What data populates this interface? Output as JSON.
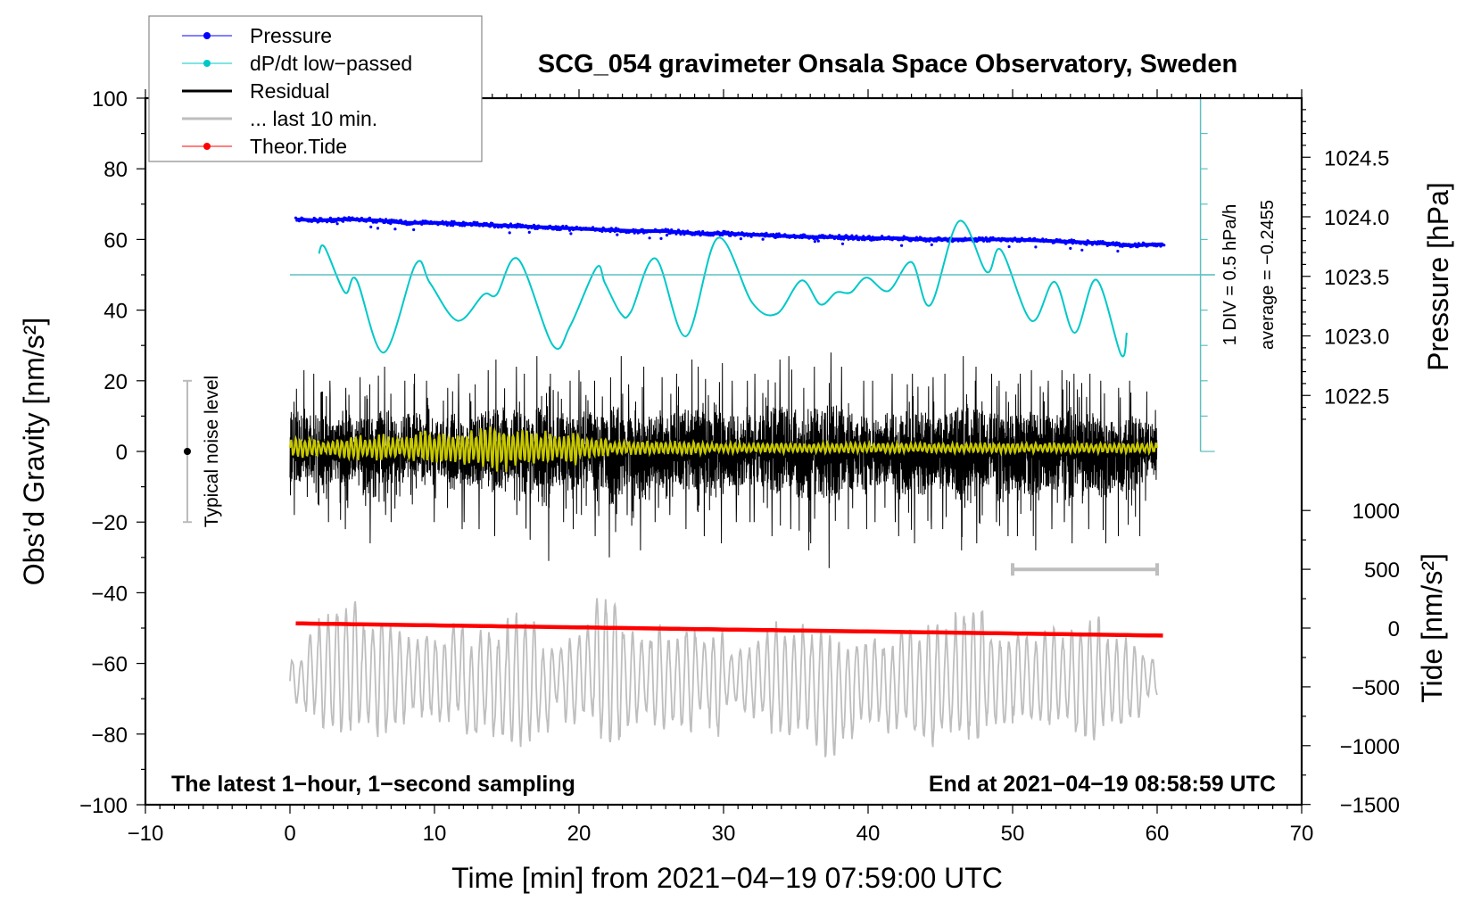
{
  "chart_data": {
    "type": "line",
    "title": "SCG_054 gravimeter Onsala Space Observatory, Sweden",
    "xlabel": "Time [min] from 2021−04−19 07:59:00 UTC",
    "ylabel": "Obs’d Gravity [nm/s²]",
    "ylabel_right_top": "Pressure [hPa]",
    "ylabel_right_bottom": "Tide [nm/s²]",
    "xlim": [
      -10,
      70
    ],
    "ylim": [
      -100,
      100
    ],
    "x_ticks": [
      "−10",
      "0",
      "10",
      "20",
      "30",
      "40",
      "50",
      "60",
      "70"
    ],
    "x_tick_values": [
      -10,
      0,
      10,
      20,
      30,
      40,
      50,
      60,
      70
    ],
    "y_ticks": [
      "100",
      "80",
      "60",
      "40",
      "20",
      "0",
      "−20",
      "−40",
      "−60",
      "−80",
      "−100"
    ],
    "y_tick_values": [
      100,
      80,
      60,
      40,
      20,
      0,
      -20,
      -40,
      -60,
      -80,
      -100
    ],
    "pressure_ticks": [
      "1024.5",
      "1024.0",
      "1023.5",
      "1023.0",
      "1022.5"
    ],
    "pressure_tick_values": [
      1024.5,
      1024.0,
      1023.5,
      1023.0,
      1022.5
    ],
    "tide_ticks": [
      "1000",
      "500",
      "0",
      "−500",
      "−1000",
      "−1500"
    ],
    "tide_tick_values": [
      1000,
      500,
      0,
      -500,
      -1000,
      -1500
    ],
    "legend": {
      "placement": "top-left",
      "entries": [
        {
          "label": "Pressure",
          "color": "#0000ff",
          "marker": "dot"
        },
        {
          "label": "dP/dt low−passed",
          "color": "#00c8c8",
          "marker": "dot"
        },
        {
          "label": "Residual",
          "color": "#000000",
          "marker": "line"
        },
        {
          "label": "... last 10 min.",
          "color": "#bebebe",
          "marker": "line"
        },
        {
          "label": "Theor.Tide",
          "color": "#ff0000",
          "marker": "dot"
        }
      ]
    },
    "annotations": {
      "div_label": "1 DIV = 0.5 hPa/h",
      "average_label": "average = −0.2455",
      "noise_label": "Typical noise level",
      "bottom_left": "The latest 1−hour, 1−second sampling",
      "bottom_right": "End at 2021−04−19 08:58:59 UTC"
    },
    "noise_level_range": [
      -20,
      20
    ],
    "last10_scale_bar_min": [
      50,
      60
    ],
    "dpdt_div_hPa_per_h": 0.5,
    "dpdt_zero_gravity_level": 50,
    "pressure_hPa": {
      "t": [
        0,
        2,
        4,
        6,
        8,
        10,
        12,
        14,
        16,
        18,
        20,
        22,
        24,
        26,
        28,
        30,
        32,
        34,
        36,
        38,
        40,
        42,
        44,
        46,
        48,
        50,
        52,
        54,
        56,
        58,
        60.5
      ],
      "values": [
        1023.98,
        1023.97,
        1023.98,
        1023.97,
        1023.95,
        1023.95,
        1023.94,
        1023.93,
        1023.92,
        1023.91,
        1023.9,
        1023.89,
        1023.88,
        1023.88,
        1023.86,
        1023.86,
        1023.85,
        1023.84,
        1023.83,
        1023.83,
        1023.82,
        1023.82,
        1023.81,
        1023.81,
        1023.81,
        1023.81,
        1023.8,
        1023.79,
        1023.78,
        1023.76,
        1023.77
      ]
    },
    "dpdt_hPa_per_h": {
      "t": [
        2.0,
        2.4,
        3.8,
        4.6,
        6.5,
        8.7,
        9.7,
        11.6,
        13.4,
        14.3,
        15.8,
        18.2,
        19.4,
        21.2,
        21.8,
        22.9,
        23.6,
        25.3,
        27.4,
        29.6,
        32.0,
        33.7,
        35.4,
        36.7,
        37.8,
        38.8,
        39.9,
        41.4,
        43.0,
        44.3,
        46.3,
        48.2,
        49.2,
        51.3,
        52.9,
        54.3,
        55.8,
        57.5,
        57.9
      ],
      "values": [
        0.3,
        0.39,
        -0.25,
        -0.07,
        -1.1,
        0.15,
        -0.12,
        -0.65,
        -0.28,
        -0.28,
        0.22,
        -1.0,
        -0.72,
        0.1,
        -0.12,
        -0.55,
        -0.52,
        0.23,
        -0.87,
        0.52,
        -0.4,
        -0.55,
        -0.08,
        -0.42,
        -0.25,
        -0.25,
        -0.04,
        -0.23,
        0.18,
        -0.43,
        0.76,
        0.04,
        0.35,
        -0.65,
        -0.1,
        -0.82,
        -0.07,
        -1.13,
        -0.82
      ]
    },
    "residual_envelope_per_minute": [
      [
        -18,
        23
      ],
      [
        -15,
        22
      ],
      [
        -20,
        20
      ],
      [
        -22,
        18
      ],
      [
        -16,
        21
      ],
      [
        -26,
        19
      ],
      [
        -18,
        24
      ],
      [
        -20,
        20
      ],
      [
        -15,
        22
      ],
      [
        -20,
        20
      ],
      [
        -16,
        18
      ],
      [
        -22,
        22
      ],
      [
        -20,
        19
      ],
      [
        -22,
        23
      ],
      [
        -24,
        26
      ],
      [
        -18,
        24
      ],
      [
        -25,
        22
      ],
      [
        -31,
        27
      ],
      [
        -20,
        22
      ],
      [
        -22,
        20
      ],
      [
        -18,
        23
      ],
      [
        -24,
        20
      ],
      [
        -30,
        27
      ],
      [
        -21,
        19
      ],
      [
        -28,
        24
      ],
      [
        -20,
        21
      ],
      [
        -18,
        22
      ],
      [
        -22,
        26
      ],
      [
        -24,
        24
      ],
      [
        -26,
        25
      ],
      [
        -20,
        20
      ],
      [
        -20,
        20
      ],
      [
        -20,
        22
      ],
      [
        -24,
        26
      ],
      [
        -22,
        27
      ],
      [
        -28,
        18
      ],
      [
        -26,
        24
      ],
      [
        -33,
        28
      ],
      [
        -22,
        24
      ],
      [
        -22,
        20
      ],
      [
        -20,
        20
      ],
      [
        -20,
        22
      ],
      [
        -24,
        19
      ],
      [
        -26,
        22
      ],
      [
        -22,
        21
      ],
      [
        -22,
        22
      ],
      [
        -28,
        27
      ],
      [
        -26,
        24
      ],
      [
        -20,
        22
      ],
      [
        -24,
        20
      ],
      [
        -24,
        22
      ],
      [
        -28,
        23
      ],
      [
        -22,
        20
      ],
      [
        -20,
        23
      ],
      [
        -26,
        22
      ],
      [
        -22,
        22
      ],
      [
        -26,
        20
      ],
      [
        -24,
        18
      ],
      [
        -24,
        20
      ],
      [
        -14,
        17
      ]
    ],
    "residual_lowpass_amplitude_per_minute": [
      3,
      3,
      2,
      3,
      4,
      3,
      4,
      3,
      4,
      5,
      5,
      4,
      5,
      6,
      7,
      5,
      6,
      5,
      4,
      5,
      3,
      3,
      2,
      2,
      2,
      2,
      2,
      2,
      2,
      1.5,
      1.5,
      1.5,
      1.5,
      1.5,
      1.5,
      1.5,
      1.5,
      1.5,
      1.5,
      1.5,
      1.5,
      1.5,
      1.5,
      1.5,
      1.5,
      1.5,
      1.5,
      1.5,
      1.5,
      1.5,
      1.5,
      1.5,
      1.5,
      1.5,
      1.5,
      1.5,
      1.5,
      1.5,
      1.5,
      1.5
    ],
    "last10_envelope_per_minute": [
      [
        -72,
        -58
      ],
      [
        -75,
        -50
      ],
      [
        -80,
        -45
      ],
      [
        -82,
        -42
      ],
      [
        -80,
        -40
      ],
      [
        -78,
        -48
      ],
      [
        -82,
        -45
      ],
      [
        -78,
        -50
      ],
      [
        -74,
        -52
      ],
      [
        -76,
        -50
      ],
      [
        -78,
        -52
      ],
      [
        -75,
        -48
      ],
      [
        -82,
        -55
      ],
      [
        -78,
        -50
      ],
      [
        -82,
        -52
      ],
      [
        -85,
        -45
      ],
      [
        -84,
        -46
      ],
      [
        -80,
        -55
      ],
      [
        -72,
        -55
      ],
      [
        -78,
        -52
      ],
      [
        -76,
        -48
      ],
      [
        -83,
        -40
      ],
      [
        -85,
        -38
      ],
      [
        -80,
        -50
      ],
      [
        -75,
        -52
      ],
      [
        -80,
        -48
      ],
      [
        -78,
        -52
      ],
      [
        -80,
        -48
      ],
      [
        -74,
        -52
      ],
      [
        -82,
        -50
      ],
      [
        -72,
        -56
      ],
      [
        -75,
        -55
      ],
      [
        -76,
        -52
      ],
      [
        -80,
        -48
      ],
      [
        -82,
        -50
      ],
      [
        -80,
        -48
      ],
      [
        -84,
        -50
      ],
      [
        -87,
        -52
      ],
      [
        -82,
        -54
      ],
      [
        -76,
        -53
      ],
      [
        -78,
        -52
      ],
      [
        -80,
        -54
      ],
      [
        -78,
        -48
      ],
      [
        -82,
        -52
      ],
      [
        -84,
        -48
      ],
      [
        -80,
        -50
      ],
      [
        -82,
        -44
      ],
      [
        -85,
        -42
      ],
      [
        -78,
        -50
      ],
      [
        -80,
        -52
      ],
      [
        -75,
        -50
      ],
      [
        -78,
        -52
      ],
      [
        -80,
        -48
      ],
      [
        -76,
        -52
      ],
      [
        -82,
        -48
      ],
      [
        -84,
        -46
      ],
      [
        -78,
        -52
      ],
      [
        -80,
        -52
      ],
      [
        -76,
        -54
      ],
      [
        -70,
        -58
      ]
    ],
    "tide_nm_s2": {
      "t": [
        0.4,
        10,
        20,
        30,
        40,
        50,
        60.5
      ],
      "values": [
        40,
        23,
        6,
        -12,
        -29,
        -46,
        -64
      ]
    },
    "colors": {
      "pressure": "#0000ff",
      "dpdt": "#00c8c8",
      "dpdt_axis": "#5fbfbf",
      "residual": "#000000",
      "lowpass": "#c8c800",
      "last10": "#bebebe",
      "tide": "#ff0000"
    }
  }
}
